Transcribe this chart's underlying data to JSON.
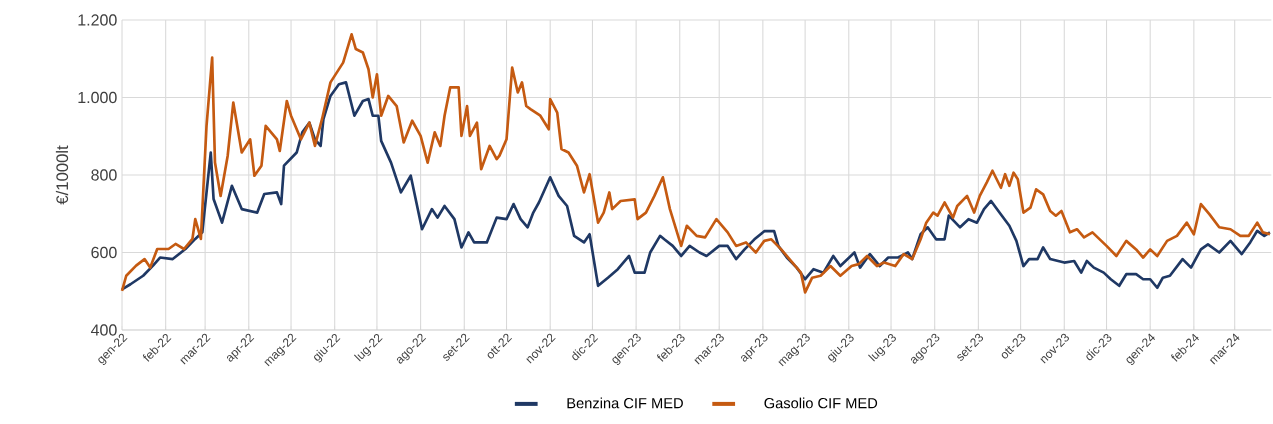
{
  "chart_data": {
    "type": "line",
    "ylabel": "€/1000lt",
    "xlim": [
      "2022-01-01",
      "2024-03-27"
    ],
    "xticks": [
      {
        "value": "2022-01-01",
        "label": "gen-22"
      },
      {
        "value": "2022-02-01",
        "label": "feb-22"
      },
      {
        "value": "2022-03-01",
        "label": "mar-22"
      },
      {
        "value": "2022-04-01",
        "label": "apr-22"
      },
      {
        "value": "2022-05-01",
        "label": "mag-22"
      },
      {
        "value": "2022-06-01",
        "label": "giu-22"
      },
      {
        "value": "2022-07-01",
        "label": "lug-22"
      },
      {
        "value": "2022-08-01",
        "label": "ago-22"
      },
      {
        "value": "2022-09-01",
        "label": "set-22"
      },
      {
        "value": "2022-10-01",
        "label": "ott-22"
      },
      {
        "value": "2022-11-01",
        "label": "nov-22"
      },
      {
        "value": "2022-12-01",
        "label": "dic-22"
      },
      {
        "value": "2023-01-01",
        "label": "gen-23"
      },
      {
        "value": "2023-02-01",
        "label": "feb-23"
      },
      {
        "value": "2023-03-01",
        "label": "mar-23"
      },
      {
        "value": "2023-04-01",
        "label": "apr-23"
      },
      {
        "value": "2023-05-01",
        "label": "mag-23"
      },
      {
        "value": "2023-06-01",
        "label": "giu-23"
      },
      {
        "value": "2023-07-01",
        "label": "lug-23"
      },
      {
        "value": "2023-08-01",
        "label": "ago-23"
      },
      {
        "value": "2023-09-01",
        "label": "set-23"
      },
      {
        "value": "2023-10-01",
        "label": "ott-23"
      },
      {
        "value": "2023-11-01",
        "label": "nov-23"
      },
      {
        "value": "2023-12-01",
        "label": "dic-23"
      },
      {
        "value": "2024-01-01",
        "label": "gen-24"
      },
      {
        "value": "2024-02-01",
        "label": "feb-24"
      },
      {
        "value": "2024-03-01",
        "label": "mar-24"
      }
    ],
    "ylim": [
      400,
      1200
    ],
    "yticks": [
      400,
      600,
      800,
      {
        "value": 1000,
        "label": "1.000"
      },
      {
        "value": 1200,
        "label": "1.200"
      }
    ],
    "grid": true,
    "legend": "bottom",
    "series": [
      {
        "name": "Benzina CIF MED",
        "color": "#1f3864",
        "x": [
          "2022-01-01",
          "2022-01-07",
          "2022-01-16",
          "2022-01-23",
          "2022-01-28",
          "2022-02-06",
          "2022-02-15",
          "2022-02-22",
          "2022-02-27",
          "2022-03-05",
          "2022-03-07",
          "2022-03-13",
          "2022-03-20",
          "2022-03-27",
          "2022-04-07",
          "2022-04-12",
          "2022-04-21",
          "2022-04-24",
          "2022-04-26",
          "2022-05-05",
          "2022-05-09",
          "2022-05-14",
          "2022-05-18",
          "2022-05-22",
          "2022-05-24",
          "2022-05-29",
          "2022-06-04",
          "2022-06-09",
          "2022-06-15",
          "2022-06-21",
          "2022-06-25",
          "2022-06-28",
          "2022-07-02",
          "2022-07-04",
          "2022-07-11",
          "2022-07-18",
          "2022-07-25",
          "2022-08-02",
          "2022-08-09",
          "2022-08-13",
          "2022-08-18",
          "2022-08-25",
          "2022-08-30",
          "2022-09-04",
          "2022-09-08",
          "2022-09-17",
          "2022-09-24",
          "2022-10-01",
          "2022-10-06",
          "2022-10-11",
          "2022-10-16",
          "2022-10-20",
          "2022-10-24",
          "2022-11-01",
          "2022-11-07",
          "2022-11-13",
          "2022-11-18",
          "2022-11-25",
          "2022-11-29",
          "2022-12-05",
          "2022-12-12",
          "2022-12-19",
          "2022-12-27",
          "2022-12-31",
          "2023-01-07",
          "2023-01-11",
          "2023-01-18",
          "2023-01-21",
          "2023-01-27",
          "2023-02-02",
          "2023-02-08",
          "2023-02-15",
          "2023-02-20",
          "2023-03-01",
          "2023-03-07",
          "2023-03-13",
          "2023-03-19",
          "2023-03-26",
          "2023-04-02",
          "2023-04-09",
          "2023-04-12",
          "2023-04-18",
          "2023-04-25",
          "2023-05-01",
          "2023-05-07",
          "2023-05-14",
          "2023-05-21",
          "2023-05-26",
          "2023-06-05",
          "2023-06-09",
          "2023-06-16",
          "2023-06-23",
          "2023-06-29",
          "2023-07-06",
          "2023-07-13",
          "2023-07-16",
          "2023-07-22",
          "2023-07-27",
          "2023-08-02",
          "2023-08-08",
          "2023-08-11",
          "2023-08-19",
          "2023-08-25",
          "2023-08-31",
          "2023-09-05",
          "2023-09-10",
          "2023-09-16",
          "2023-09-23",
          "2023-09-28",
          "2023-10-03",
          "2023-10-07",
          "2023-10-13",
          "2023-10-17",
          "2023-10-22",
          "2023-11-01",
          "2023-11-08",
          "2023-11-13",
          "2023-11-17",
          "2023-11-22",
          "2023-11-29",
          "2023-12-04",
          "2023-12-10",
          "2023-12-15",
          "2023-12-22",
          "2023-12-27",
          "2024-01-01",
          "2024-01-06",
          "2024-01-10",
          "2024-01-15",
          "2024-01-24",
          "2024-01-30",
          "2024-02-06",
          "2024-02-11",
          "2024-02-19",
          "2024-02-27",
          "2024-03-01",
          "2024-03-06",
          "2024-03-12",
          "2024-03-17",
          "2024-03-22",
          "2024-03-26"
        ],
        "values": [
          505,
          518,
          540,
          566,
          587,
          583,
          609,
          635,
          652,
          858,
          738,
          677,
          772,
          712,
          703,
          751,
          755,
          725,
          824,
          858,
          910,
          935,
          892,
          875,
          944,
          1004,
          1034,
          1039,
          953,
          991,
          996,
          953,
          953,
          888,
          832,
          755,
          798,
          660,
          712,
          690,
          720,
          686,
          613,
          652,
          626,
          626,
          690,
          686,
          725,
          686,
          665,
          703,
          729,
          794,
          746,
          720,
          643,
          626,
          647,
          514,
          535,
          557,
          591,
          548,
          548,
          600,
          643,
          634,
          617,
          591,
          617,
          600,
          591,
          617,
          617,
          583,
          608,
          634,
          655,
          655,
          617,
          587,
          561,
          531,
          557,
          548,
          591,
          565,
          600,
          561,
          596,
          565,
          587,
          587,
          600,
          583,
          647,
          665,
          634,
          634,
          695,
          665,
          686,
          677,
          712,
          733,
          703,
          669,
          630,
          565,
          583,
          583,
          613,
          583,
          574,
          578,
          548,
          578,
          561,
          548,
          531,
          514,
          544,
          544,
          531,
          531,
          509,
          535,
          540,
          583,
          561,
          608,
          621,
          600,
          630,
          617,
          596,
          626,
          656,
          643,
          652
        ]
      },
      {
        "name": "Gasolio CIF MED",
        "color": "#c55a11",
        "x": [
          "2022-01-01",
          "2022-01-04",
          "2022-01-11",
          "2022-01-17",
          "2022-01-21",
          "2022-01-26",
          "2022-02-03",
          "2022-02-08",
          "2022-02-14",
          "2022-02-20",
          "2022-02-22",
          "2022-02-26",
          "2022-03-02",
          "2022-03-06",
          "2022-03-08",
          "2022-03-12",
          "2022-03-17",
          "2022-03-21",
          "2022-03-27",
          "2022-04-02",
          "2022-04-05",
          "2022-04-10",
          "2022-04-13",
          "2022-04-21",
          "2022-04-23",
          "2022-04-28",
          "2022-05-01",
          "2022-05-08",
          "2022-05-14",
          "2022-05-18",
          "2022-05-23",
          "2022-05-29",
          "2022-06-07",
          "2022-06-13",
          "2022-06-16",
          "2022-06-21",
          "2022-06-25",
          "2022-06-28",
          "2022-07-01",
          "2022-07-04",
          "2022-07-09",
          "2022-07-15",
          "2022-07-20",
          "2022-07-26",
          "2022-08-01",
          "2022-08-06",
          "2022-08-11",
          "2022-08-15",
          "2022-08-18",
          "2022-08-22",
          "2022-08-28",
          "2022-08-30",
          "2022-09-03",
          "2022-09-05",
          "2022-09-10",
          "2022-09-13",
          "2022-09-19",
          "2022-09-24",
          "2022-09-26",
          "2022-10-01",
          "2022-10-05",
          "2022-10-09",
          "2022-10-12",
          "2022-10-15",
          "2022-10-18",
          "2022-10-25",
          "2022-10-31",
          "2022-11-01",
          "2022-11-06",
          "2022-11-09",
          "2022-11-14",
          "2022-11-20",
          "2022-11-25",
          "2022-11-29",
          "2022-12-05",
          "2022-12-09",
          "2022-12-13",
          "2022-12-15",
          "2022-12-21",
          "2022-12-31",
          "2023-01-02",
          "2023-01-08",
          "2023-01-14",
          "2023-01-20",
          "2023-01-25",
          "2023-02-02",
          "2023-02-06",
          "2023-02-13",
          "2023-02-19",
          "2023-02-27",
          "2023-03-07",
          "2023-03-13",
          "2023-03-20",
          "2023-03-27",
          "2023-04-02",
          "2023-04-07",
          "2023-04-14",
          "2023-04-22",
          "2023-04-28",
          "2023-05-01",
          "2023-05-06",
          "2023-05-12",
          "2023-05-19",
          "2023-05-26",
          "2023-06-03",
          "2023-06-08",
          "2023-06-14",
          "2023-06-21",
          "2023-06-26",
          "2023-07-04",
          "2023-07-10",
          "2023-07-16",
          "2023-07-22",
          "2023-07-26",
          "2023-07-31",
          "2023-08-03",
          "2023-08-08",
          "2023-08-14",
          "2023-08-17",
          "2023-08-24",
          "2023-08-29",
          "2023-09-02",
          "2023-09-07",
          "2023-09-11",
          "2023-09-17",
          "2023-09-20",
          "2023-09-23",
          "2023-09-26",
          "2023-09-29",
          "2023-10-03",
          "2023-10-08",
          "2023-10-12",
          "2023-10-17",
          "2023-10-22",
          "2023-10-26",
          "2023-10-30",
          "2023-11-05",
          "2023-11-10",
          "2023-11-15",
          "2023-11-21",
          "2023-12-01",
          "2023-12-08",
          "2023-12-15",
          "2023-12-22",
          "2023-12-27",
          "2024-01-01",
          "2024-01-06",
          "2024-01-13",
          "2024-01-20",
          "2024-01-27",
          "2024-02-01",
          "2024-02-06",
          "2024-02-12",
          "2024-02-19",
          "2024-02-27",
          "2024-03-05",
          "2024-03-11",
          "2024-03-17",
          "2024-03-21",
          "2024-03-26"
        ],
        "values": [
          501,
          540,
          566,
          583,
          561,
          609,
          609,
          622,
          609,
          635,
          686,
          635,
          927,
          1103,
          832,
          746,
          849,
          987,
          858,
          892,
          798,
          824,
          927,
          892,
          862,
          991,
          953,
          892,
          935,
          875,
          944,
          1039,
          1090,
          1163,
          1125,
          1116,
          1073,
          1000,
          1060,
          953,
          1004,
          978,
          884,
          940,
          901,
          832,
          910,
          875,
          953,
          1026,
          1026,
          901,
          978,
          901,
          935,
          815,
          875,
          841,
          850,
          892,
          1077,
          1013,
          1039,
          978,
          970,
          953,
          918,
          996,
          961,
          867,
          858,
          824,
          755,
          802,
          677,
          703,
          755,
          712,
          733,
          737,
          686,
          703,
          746,
          794,
          712,
          617,
          669,
          643,
          639,
          686,
          652,
          617,
          626,
          600,
          630,
          634,
          608,
          574,
          548,
          497,
          535,
          540,
          565,
          540,
          565,
          570,
          591,
          565,
          574,
          565,
          596,
          583,
          634,
          677,
          703,
          695,
          729,
          690,
          720,
          746,
          703,
          746,
          781,
          811,
          767,
          802,
          772,
          806,
          789,
          703,
          716,
          763,
          750,
          707,
          695,
          707,
          652,
          660,
          639,
          652,
          617,
          591,
          630,
          608,
          587,
          608,
          591,
          630,
          643,
          677,
          647,
          725,
          699,
          665,
          660,
          643,
          643,
          677,
          652,
          647
        ]
      }
    ]
  }
}
